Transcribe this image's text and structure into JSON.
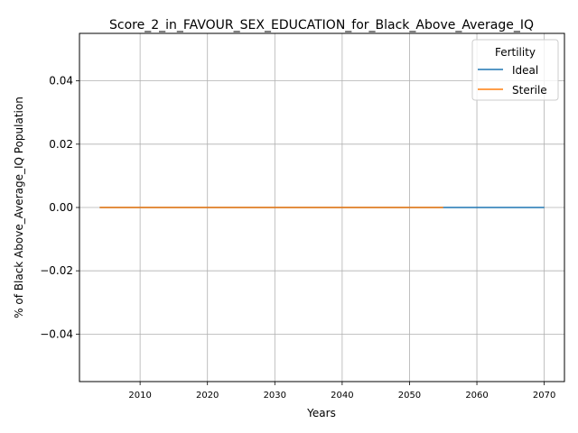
{
  "chart_data": {
    "type": "line",
    "title": "Score_2_in_FAVOUR_SEX_EDUCATION_for_Black_Above_Average_IQ",
    "xlabel": "Years",
    "ylabel": "% of Black Above_Average_IQ Population",
    "xlim": [
      2001,
      2073
    ],
    "ylim": [
      -0.055,
      0.055
    ],
    "x_ticks": [
      2010,
      2020,
      2030,
      2040,
      2050,
      2060,
      2070
    ],
    "y_ticks": [
      -0.04,
      -0.02,
      0.0,
      0.02,
      0.04
    ],
    "y_tick_labels": [
      "−0.04",
      "−0.02",
      "0.00",
      "0.02",
      "0.04"
    ],
    "grid": true,
    "legend": {
      "title": "Fertility",
      "position": "top-right"
    },
    "series": [
      {
        "name": "Ideal",
        "color": "#1f77b4",
        "x": [
          2004,
          2070
        ],
        "y": [
          0,
          0
        ]
      },
      {
        "name": "Sterile",
        "color": "#ff7f0e",
        "x": [
          2004,
          2055
        ],
        "y": [
          0,
          0
        ]
      }
    ]
  }
}
